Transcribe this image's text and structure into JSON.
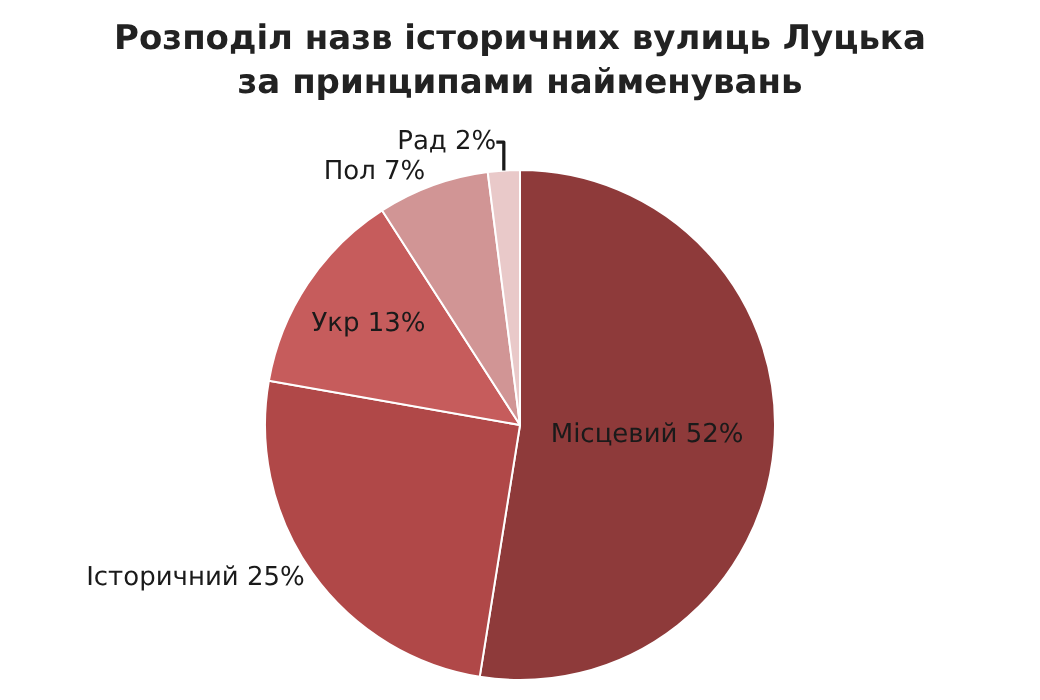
{
  "chart_data": {
    "type": "pie",
    "title": "Розподіл назв історичних вулиць Луцька за принципами найменувань",
    "categories": [
      "Місцевий",
      "Історичний",
      "Укр",
      "Пол",
      "Рад"
    ],
    "values": [
      52,
      25,
      13,
      7,
      2
    ],
    "value_labels": [
      "52%",
      "25%",
      "13%",
      "7%",
      "2%"
    ],
    "colors": [
      "#8e3a3a",
      "#b04848",
      "#c65c5c",
      "#d19595",
      "#e9c9c9"
    ],
    "legend": false
  }
}
